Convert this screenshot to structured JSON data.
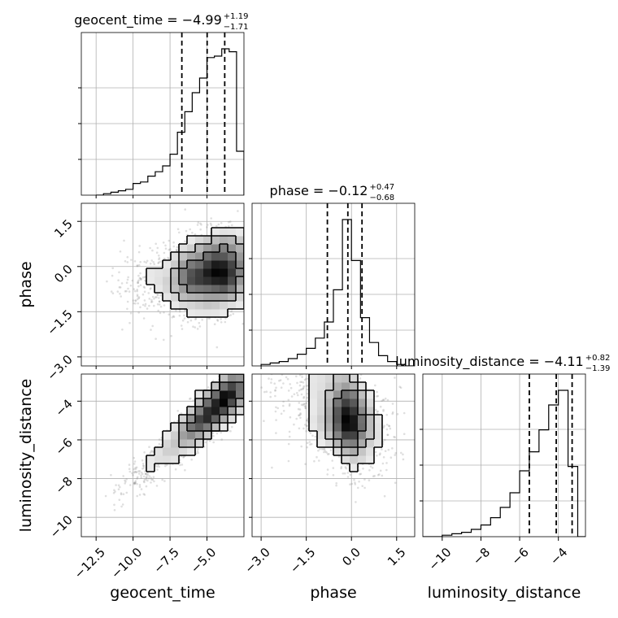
{
  "chart_data": {
    "type": "corner",
    "params": [
      "geocent_time",
      "phase",
      "luminosity_distance"
    ],
    "titles": [
      {
        "prefix": "geocent_time = −4.99",
        "upper": "+1.19",
        "lower": "−1.71"
      },
      {
        "prefix": "phase = −0.12",
        "upper": "+0.47",
        "lower": "−0.68"
      },
      {
        "prefix": "luminosity_distance = −4.11",
        "upper": "+0.82",
        "lower": "−1.39"
      }
    ],
    "axis_labels": {
      "x": [
        "geocent_time",
        "phase",
        "luminosity_distance"
      ],
      "y": [
        "phase",
        "luminosity_distance"
      ]
    },
    "ranges": {
      "geocent_time": [
        -13.5,
        -2.5
      ],
      "phase": [
        -3.3,
        2.1
      ],
      "luminosity_distance": [
        -11.0,
        -2.6
      ]
    },
    "ticks": {
      "geocent_time": {
        "values": [
          -12.5,
          -10.0,
          -7.5,
          -5.0
        ],
        "labels": [
          "−12.5",
          "−10.0",
          "−7.5",
          "−5.0"
        ]
      },
      "phase": {
        "values": [
          -3.0,
          -1.5,
          0.0,
          1.5
        ],
        "labels": [
          "−3.0",
          "−1.5",
          "0.0",
          "1.5"
        ]
      },
      "luminosity_distance": {
        "values": [
          -10,
          -8,
          -6,
          -4
        ],
        "labels": [
          "−10",
          "−8",
          "−6",
          "−4"
        ]
      }
    },
    "quantiles": {
      "geocent_time": [
        -6.7,
        -4.99,
        -3.8
      ],
      "phase": [
        -0.8,
        -0.12,
        0.35
      ],
      "luminosity_distance": [
        -5.5,
        -4.11,
        -3.29
      ]
    },
    "hist_bins": {
      "geocent_time": {
        "edges": [
          -12.5,
          -12.0,
          -11.5,
          -11.0,
          -10.5,
          -10.0,
          -9.5,
          -9.0,
          -8.5,
          -8.0,
          -7.5,
          -7.0,
          -6.5,
          -6.0,
          -5.5,
          -5.0,
          -4.5,
          -4.0,
          -3.5,
          -3.0,
          -2.5
        ],
        "counts": [
          0.0,
          0.01,
          0.02,
          0.03,
          0.04,
          0.08,
          0.09,
          0.13,
          0.16,
          0.2,
          0.28,
          0.43,
          0.57,
          0.7,
          0.8,
          0.94,
          0.95,
          1.0,
          0.98,
          0.3
        ]
      },
      "phase": {
        "edges": [
          -3.0,
          -2.7,
          -2.4,
          -2.1,
          -1.8,
          -1.5,
          -1.2,
          -0.9,
          -0.6,
          -0.3,
          0.0,
          0.3,
          0.6,
          0.9,
          1.2,
          1.5,
          1.8,
          2.1
        ],
        "counts": [
          0.01,
          0.02,
          0.03,
          0.05,
          0.08,
          0.12,
          0.19,
          0.3,
          0.52,
          1.0,
          0.72,
          0.33,
          0.16,
          0.07,
          0.03,
          0.01,
          0.0
        ]
      },
      "luminosity_distance": {
        "edges": [
          -11.0,
          -10.5,
          -10.0,
          -9.5,
          -9.0,
          -8.5,
          -8.0,
          -7.5,
          -7.0,
          -6.5,
          -6.0,
          -5.5,
          -5.0,
          -4.5,
          -4.0,
          -3.5,
          -3.0,
          -2.6
        ],
        "counts": [
          0.0,
          0.0,
          0.01,
          0.02,
          0.03,
          0.05,
          0.08,
          0.13,
          0.2,
          0.3,
          0.45,
          0.58,
          0.73,
          0.9,
          1.0,
          0.48,
          0.0
        ]
      }
    },
    "correlations": {
      "geocent_time|phase": 0.22,
      "geocent_time|luminosity_distance": 0.9,
      "phase|luminosity_distance": -0.32
    },
    "samples_per_panel": 2200,
    "point_color": "#808080",
    "line_color": "#000000",
    "grid": true
  }
}
